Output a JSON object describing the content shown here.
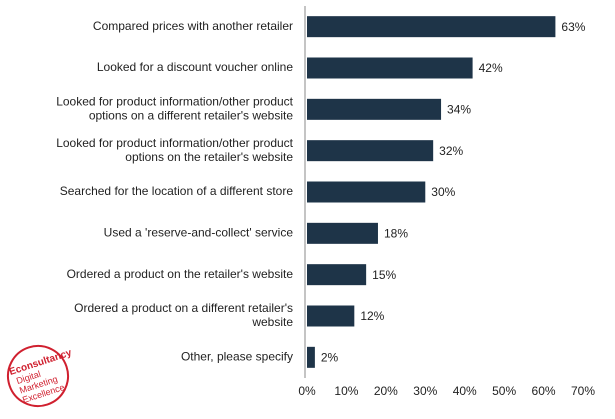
{
  "chart_data": {
    "type": "bar",
    "orientation": "horizontal",
    "categories": [
      [
        "Compared prices with another retailer"
      ],
      [
        "Looked for a discount voucher online"
      ],
      [
        "Looked for product information/other product",
        "options on a different retailer's website"
      ],
      [
        "Looked for product information/other product",
        "options on the retailer's website"
      ],
      [
        "Searched for the location of a different store"
      ],
      [
        "Used a 'reserve-and-collect' service"
      ],
      [
        "Ordered a product on the retailer's website"
      ],
      [
        "Ordered a product on a different retailer's",
        "website"
      ],
      [
        "Other, please specify"
      ]
    ],
    "values": [
      63,
      42,
      34,
      32,
      30,
      18,
      15,
      12,
      2
    ],
    "value_labels": [
      "63%",
      "42%",
      "34%",
      "32%",
      "30%",
      "18%",
      "15%",
      "12%",
      "2%"
    ],
    "color": "#1e3448",
    "xlim": [
      0,
      70
    ],
    "xticks": [
      {
        "value": 0,
        "label": "0%"
      },
      {
        "value": 10,
        "label": "10%"
      },
      {
        "value": 20,
        "label": "20%"
      },
      {
        "value": 30,
        "label": "30%"
      },
      {
        "value": 40,
        "label": "40%"
      },
      {
        "value": 50,
        "label": "50%"
      },
      {
        "value": 60,
        "label": "60%"
      },
      {
        "value": 70,
        "label": "70%"
      }
    ]
  },
  "logo": {
    "lines": [
      "Econsultancy",
      "Digital",
      "Marketing",
      "Excellence"
    ]
  }
}
